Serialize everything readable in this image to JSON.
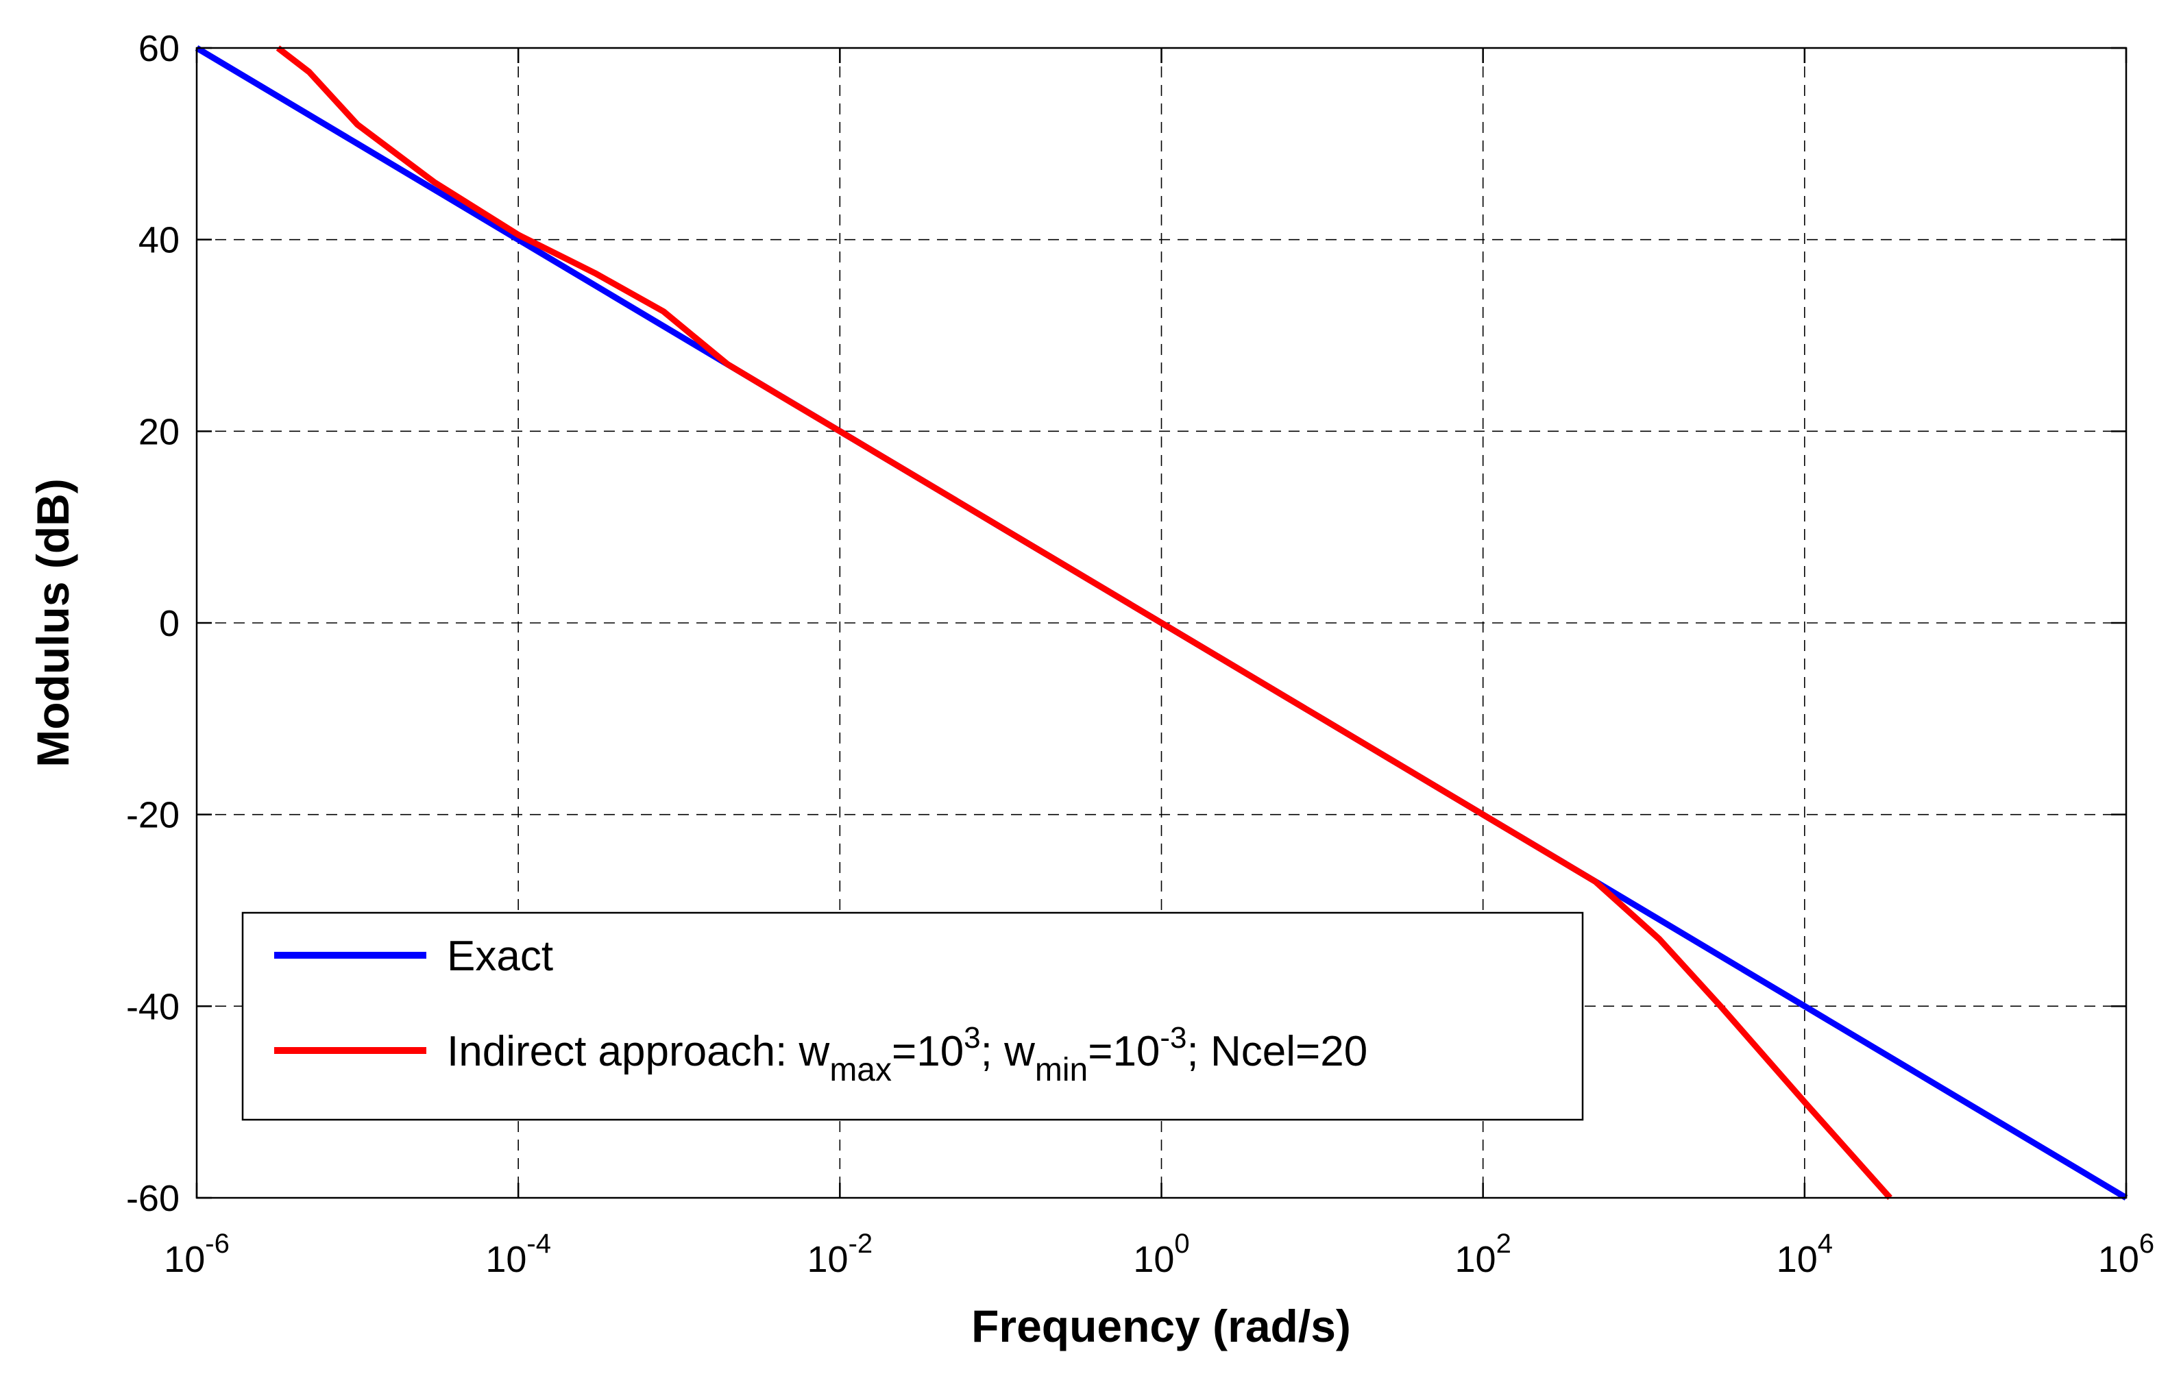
{
  "chart_data": {
    "type": "line",
    "xscale": "log",
    "xlabel": "Frequency (rad/s)",
    "ylabel": "Modulus (dB)",
    "xlim": [
      1e-06,
      1000000.0
    ],
    "ylim": [
      -60,
      60
    ],
    "grid": true,
    "legend_position": "bottom-left",
    "x_ticks": [
      {
        "base": "10",
        "exp": "-6",
        "value": 1e-06
      },
      {
        "base": "10",
        "exp": "-4",
        "value": 0.0001
      },
      {
        "base": "10",
        "exp": "-2",
        "value": 0.01
      },
      {
        "base": "10",
        "exp": "0",
        "value": 1
      },
      {
        "base": "10",
        "exp": "2",
        "value": 100
      },
      {
        "base": "10",
        "exp": "4",
        "value": 10000
      },
      {
        "base": "10",
        "exp": "6",
        "value": 1000000
      }
    ],
    "y_ticks": [
      "60",
      "40",
      "20",
      "0",
      "-20",
      "-40",
      "-60"
    ],
    "series": [
      {
        "name": "Exact",
        "color": "#0000ff",
        "x": [
          1e-06,
          1e-05,
          0.0001,
          0.001,
          0.01,
          0.1,
          1,
          10,
          100,
          1000,
          10000,
          100000,
          1000000
        ],
        "y": [
          60,
          50,
          40,
          30,
          20,
          10,
          0,
          -10,
          -20,
          -30,
          -40,
          -50,
          -60
        ]
      },
      {
        "name": "Indirect approach",
        "color": "#ff0000",
        "x": [
          3.2e-06,
          5e-06,
          1e-05,
          3e-05,
          0.0001,
          0.0003,
          0.0008,
          0.002,
          0.005,
          0.01,
          0.1,
          1,
          10,
          100,
          500,
          1250,
          3000,
          10000,
          34000
        ],
        "y": [
          60,
          57.5,
          52,
          46,
          40.5,
          36.5,
          32.5,
          27,
          23,
          20,
          10,
          0,
          -10,
          -20,
          -27,
          -33,
          -40,
          -50,
          -60
        ]
      }
    ],
    "legend": [
      {
        "label": "Exact"
      },
      {
        "label": "Indirect approach: w",
        "sub1": "max",
        "t1": "=10",
        "sup1": "3",
        "t2": "; w",
        "sub2": "min",
        "t3": "=10",
        "sup2": "-3",
        "t4": "; Ncel=20"
      }
    ]
  }
}
